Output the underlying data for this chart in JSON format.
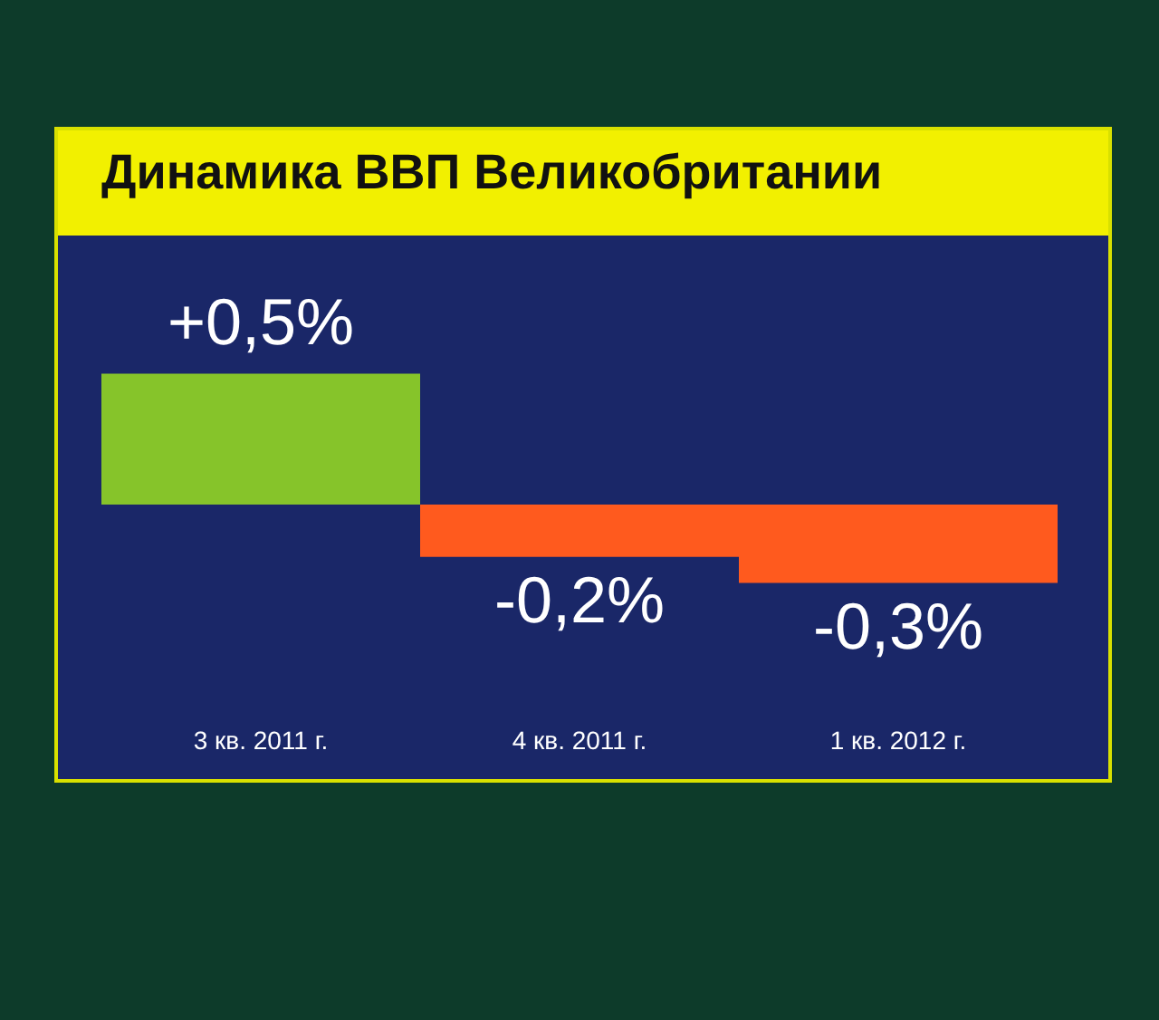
{
  "chart_data": {
    "type": "bar",
    "title": "Динамика ВВП Великобритании",
    "categories": [
      "3 кв. 2011 г.",
      "4 кв. 2011 г.",
      "1 кв. 2012 г."
    ],
    "values": [
      0.5,
      -0.2,
      -0.3
    ],
    "colors": [
      "#86c42a",
      "#ff5a1e",
      "#ff5a1e"
    ],
    "value_labels": [
      "+0,5%",
      "-0,2%",
      "-0,3%"
    ],
    "tick_labels": "x"
  }
}
